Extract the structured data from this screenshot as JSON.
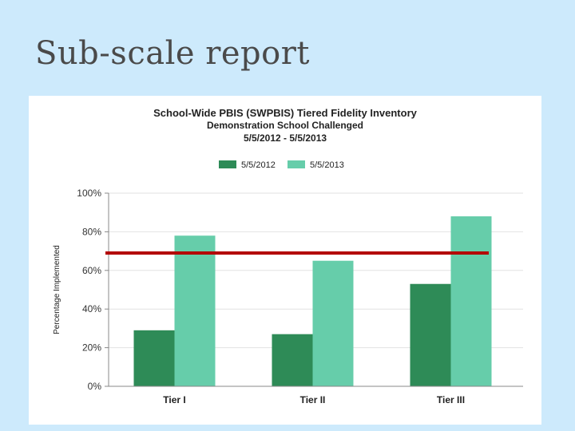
{
  "slide": {
    "title": "Sub-scale report"
  },
  "chart_data": {
    "type": "bar",
    "title": "School-Wide PBIS (SWPBIS) Tiered Fidelity Inventory",
    "subtitle": "Demonstration School Challenged",
    "date_range": "5/5/2012 - 5/5/2013",
    "ylabel": "Percentage Implemented",
    "xlabel": "",
    "categories": [
      "Tier I",
      "Tier II",
      "Tier III"
    ],
    "series": [
      {
        "name": "5/5/2012",
        "values": [
          29,
          27,
          53
        ],
        "color": "#2e8b57"
      },
      {
        "name": "5/5/2013",
        "values": [
          78,
          65,
          88
        ],
        "color": "#66cdaa"
      }
    ],
    "ylim": [
      0,
      100
    ],
    "yticks": [
      "0%",
      "20%",
      "40%",
      "60%",
      "80%",
      "100%"
    ],
    "ytick_values": [
      0,
      20,
      40,
      60,
      80,
      100
    ],
    "reference_line": {
      "value": 69,
      "color": "#b30000"
    },
    "legend_position": "top-center",
    "grid": true
  }
}
